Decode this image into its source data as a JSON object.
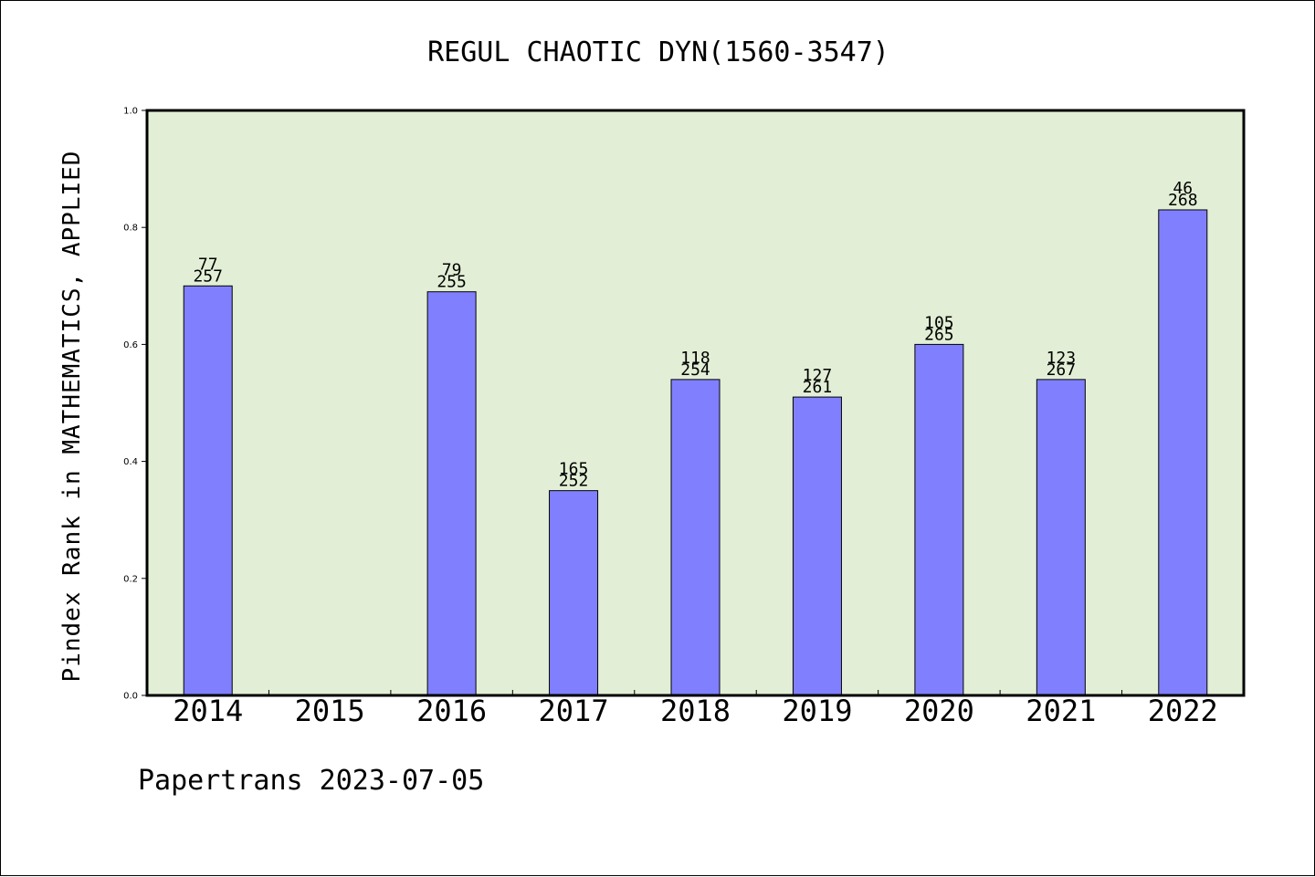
{
  "chart_data": {
    "type": "bar",
    "title": "REGUL CHAOTIC DYN(1560-3547)",
    "ylabel": "Pindex Rank in MATHEMATICS, APPLIED",
    "xlabel": "",
    "ylim": [
      0.0,
      1.0
    ],
    "yticks": [
      "0.0",
      "0.2",
      "0.4",
      "0.6",
      "0.8",
      "1.0"
    ],
    "categories": [
      "2014",
      "2015",
      "2016",
      "2017",
      "2018",
      "2019",
      "2020",
      "2021",
      "2022"
    ],
    "values": [
      0.7,
      null,
      0.69,
      0.35,
      0.54,
      0.51,
      0.6,
      0.54,
      0.83
    ],
    "labels_top": [
      "77",
      "",
      "79",
      "165",
      "118",
      "127",
      "105",
      "123",
      "46"
    ],
    "labels_bottom": [
      "257",
      "",
      "255",
      "252",
      "254",
      "261",
      "265",
      "267",
      "268"
    ],
    "grid": false,
    "colors": {
      "plot_background": "#e2efd6",
      "bar_fill": "#8080ff",
      "bar_stroke": "#000000"
    }
  },
  "footer": {
    "text": "Papertrans 2023-07-05"
  }
}
